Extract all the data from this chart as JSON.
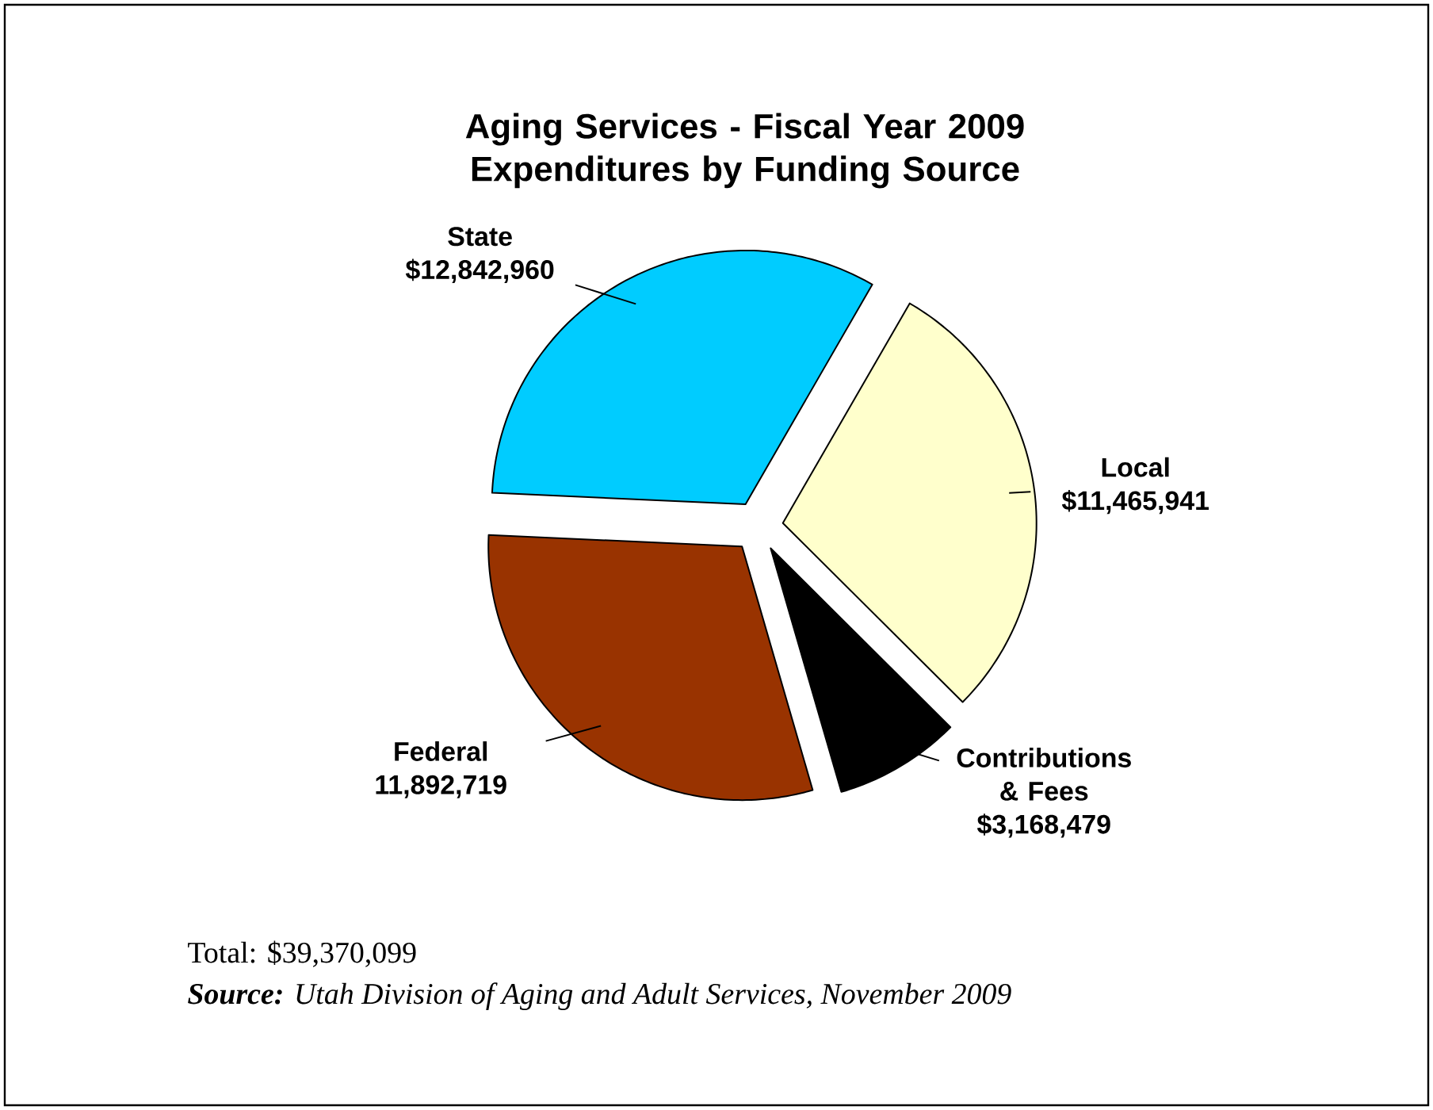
{
  "chart_data": {
    "type": "pie",
    "title": "Aging Services - Fiscal Year 2009 Expenditures by Funding Source",
    "categories": [
      "Local",
      "Contributions & Fees",
      "Federal",
      "State"
    ],
    "values": [
      11465941,
      3168479,
      11892719,
      12842960
    ],
    "colors": [
      "#ffffcc",
      "#000000",
      "#993300",
      "#00ccff"
    ],
    "value_labels": [
      "$11,465,941",
      "$3,168,479",
      "11,892,719",
      "$12,842,960"
    ],
    "annotations": [
      "Total: $39,370,099",
      "**Source:** Utah Division of Aging and Adult Services, November 2009"
    ]
  }
}
